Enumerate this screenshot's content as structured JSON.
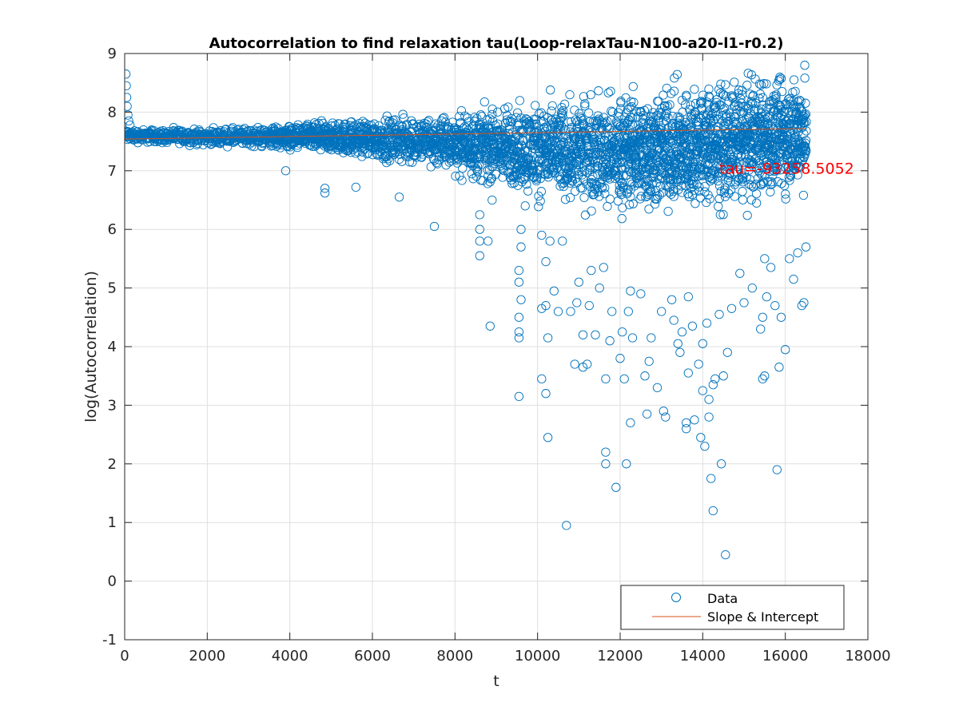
{
  "chart_data": {
    "type": "scatter",
    "title": "Autocorrelation to find relaxation tau(Loop-relaxTau-N100-a20-l1-r0.2)",
    "xlabel": "t",
    "ylabel": "log(Autocorrelation)",
    "xlim": [
      0,
      18000
    ],
    "ylim": [
      -1,
      9
    ],
    "xticks": [
      0,
      2000,
      4000,
      6000,
      8000,
      10000,
      12000,
      14000,
      16000,
      18000
    ],
    "yticks": [
      -1,
      0,
      1,
      2,
      3,
      4,
      5,
      6,
      7,
      8,
      9
    ],
    "grid": true,
    "legend_position": "bottom-right",
    "annotation": {
      "text": "tau=-93258.5052",
      "x": 14400,
      "y": 6.95,
      "color": "#ff0000"
    },
    "colors": {
      "data": "#0072bd",
      "fit": "#d95319",
      "axes": "#262626",
      "grid": "#dfdfdf"
    },
    "series": [
      {
        "name": "Data",
        "kind": "scatter",
        "marker": "circle-open",
        "band": {
          "description_of_main_band": "dense cloud of points at every t from 0 to 16500",
          "t_max": 16500,
          "lower_edge": [
            [
              0,
              7.45
            ],
            [
              2000,
              7.4
            ],
            [
              4000,
              7.3
            ],
            [
              6000,
              7.1
            ],
            [
              8000,
              6.8
            ],
            [
              10000,
              6.3
            ],
            [
              12000,
              6.0
            ],
            [
              14000,
              6.0
            ],
            [
              16500,
              6.4
            ]
          ],
          "upper_edge": [
            [
              0,
              7.75
            ],
            [
              2000,
              7.75
            ],
            [
              4000,
              7.85
            ],
            [
              6000,
              8.0
            ],
            [
              8000,
              8.15
            ],
            [
              10000,
              8.4
            ],
            [
              12000,
              8.65
            ],
            [
              14000,
              8.8
            ],
            [
              16500,
              8.95
            ]
          ],
          "initial_spike": [
            [
              30,
              8.65
            ],
            [
              40,
              8.45
            ],
            [
              50,
              8.25
            ],
            [
              60,
              8.1
            ],
            [
              80,
              7.95
            ],
            [
              100,
              7.85
            ],
            [
              130,
              7.78
            ]
          ]
        },
        "outliers": [
          [
            7500,
            6.05
          ],
          [
            6650,
            6.55
          ],
          [
            4850,
            6.62
          ],
          [
            4850,
            6.7
          ],
          [
            5600,
            6.72
          ],
          [
            3900,
            7.0
          ],
          [
            8600,
            5.55
          ],
          [
            8600,
            5.8
          ],
          [
            8600,
            6.0
          ],
          [
            8600,
            6.25
          ],
          [
            8800,
            5.8
          ],
          [
            8850,
            4.35
          ],
          [
            8900,
            6.5
          ],
          [
            9550,
            3.15
          ],
          [
            9550,
            4.15
          ],
          [
            9550,
            4.25
          ],
          [
            9550,
            4.5
          ],
          [
            9600,
            4.8
          ],
          [
            9550,
            5.1
          ],
          [
            9550,
            5.3
          ],
          [
            9600,
            5.7
          ],
          [
            9600,
            6.0
          ],
          [
            9700,
            6.4
          ],
          [
            10100,
            3.45
          ],
          [
            10100,
            4.65
          ],
          [
            10200,
            3.2
          ],
          [
            10250,
            2.45
          ],
          [
            10250,
            4.15
          ],
          [
            10200,
            4.7
          ],
          [
            10200,
            5.45
          ],
          [
            10300,
            5.8
          ],
          [
            10400,
            4.95
          ],
          [
            10500,
            4.6
          ],
          [
            10100,
            5.9
          ],
          [
            10600,
            5.8
          ],
          [
            10700,
            0.95
          ],
          [
            10800,
            4.6
          ],
          [
            10900,
            3.7
          ],
          [
            10950,
            4.75
          ],
          [
            11000,
            5.1
          ],
          [
            11100,
            4.2
          ],
          [
            11100,
            3.65
          ],
          [
            11200,
            3.7
          ],
          [
            11250,
            4.7
          ],
          [
            11300,
            5.3
          ],
          [
            11400,
            4.2
          ],
          [
            11500,
            5.0
          ],
          [
            11600,
            5.35
          ],
          [
            11650,
            2.2
          ],
          [
            11650,
            2.0
          ],
          [
            11650,
            3.45
          ],
          [
            11750,
            4.1
          ],
          [
            11800,
            4.6
          ],
          [
            11900,
            1.6
          ],
          [
            12000,
            3.8
          ],
          [
            12050,
            4.25
          ],
          [
            12100,
            3.45
          ],
          [
            12150,
            2.0
          ],
          [
            12150,
            -0.25
          ],
          [
            12200,
            4.6
          ],
          [
            12250,
            2.7
          ],
          [
            12250,
            4.95
          ],
          [
            12300,
            4.15
          ],
          [
            12500,
            4.9
          ],
          [
            12600,
            3.5
          ],
          [
            12650,
            2.85
          ],
          [
            12700,
            3.75
          ],
          [
            12750,
            4.15
          ],
          [
            12900,
            3.3
          ],
          [
            13000,
            4.6
          ],
          [
            13050,
            2.9
          ],
          [
            13100,
            2.8
          ],
          [
            13250,
            4.8
          ],
          [
            13300,
            4.45
          ],
          [
            13400,
            4.05
          ],
          [
            13450,
            3.9
          ],
          [
            13500,
            4.25
          ],
          [
            13600,
            2.7
          ],
          [
            13600,
            2.6
          ],
          [
            13650,
            3.55
          ],
          [
            13650,
            4.85
          ],
          [
            13750,
            4.35
          ],
          [
            13800,
            2.75
          ],
          [
            13900,
            3.7
          ],
          [
            13950,
            2.45
          ],
          [
            14000,
            3.25
          ],
          [
            14000,
            4.05
          ],
          [
            14050,
            2.3
          ],
          [
            14100,
            4.4
          ],
          [
            14150,
            2.8
          ],
          [
            14150,
            3.1
          ],
          [
            14200,
            1.75
          ],
          [
            14250,
            1.2
          ],
          [
            14250,
            3.35
          ],
          [
            14300,
            3.45
          ],
          [
            14400,
            4.55
          ],
          [
            14450,
            2.0
          ],
          [
            14500,
            3.5
          ],
          [
            14550,
            0.45
          ],
          [
            14600,
            3.9
          ],
          [
            14700,
            4.65
          ],
          [
            14900,
            5.25
          ],
          [
            15000,
            4.75
          ],
          [
            15200,
            5.0
          ],
          [
            15400,
            4.3
          ],
          [
            15450,
            3.45
          ],
          [
            15500,
            3.5
          ],
          [
            15450,
            4.5
          ],
          [
            15500,
            5.5
          ],
          [
            15550,
            4.85
          ],
          [
            15650,
            5.35
          ],
          [
            15750,
            4.7
          ],
          [
            15800,
            1.9
          ],
          [
            15850,
            3.65
          ],
          [
            15900,
            4.5
          ],
          [
            16000,
            3.95
          ],
          [
            16100,
            5.5
          ],
          [
            16200,
            5.15
          ],
          [
            16300,
            5.6
          ],
          [
            16400,
            4.7
          ],
          [
            16450,
            4.75
          ],
          [
            16500,
            5.7
          ]
        ]
      },
      {
        "name": "Slope & Intercept",
        "kind": "line",
        "points": [
          [
            0,
            7.54
          ],
          [
            16500,
            7.72
          ]
        ]
      }
    ]
  }
}
